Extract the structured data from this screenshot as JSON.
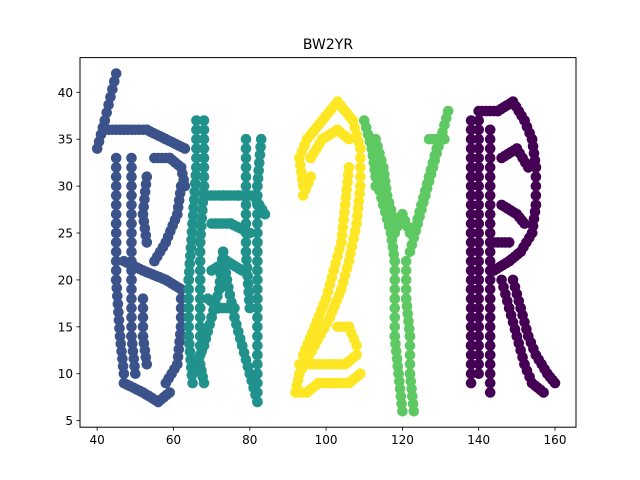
{
  "chart_data": {
    "type": "scatter",
    "title": "BW2YR",
    "xlabel": "",
    "ylabel": "",
    "xlim": [
      35.5,
      165.5
    ],
    "ylim": [
      4.3,
      43.7
    ],
    "xticks": [
      40,
      60,
      80,
      100,
      120,
      140,
      160
    ],
    "yticks": [
      5,
      10,
      15,
      20,
      25,
      30,
      35,
      40
    ],
    "grid": false,
    "legend": "none",
    "series": [
      {
        "color": "#3b528b",
        "letter": "B",
        "strokes": [
          [
            [
              40,
              34
            ],
            [
              42,
              37
            ],
            [
              45,
              42
            ]
          ],
          [
            [
              42,
              36
            ],
            [
              47,
              36
            ],
            [
              53,
              36
            ],
            [
              58,
              35
            ],
            [
              63,
              34
            ]
          ],
          [
            [
              45,
              33
            ],
            [
              45,
              26
            ],
            [
              45,
              20
            ],
            [
              46,
              14
            ],
            [
              47,
              10
            ]
          ],
          [
            [
              49,
              33
            ],
            [
              49,
              26
            ],
            [
              49,
              20
            ],
            [
              49,
              14
            ],
            [
              50,
              10
            ]
          ],
          [
            [
              47,
              9
            ],
            [
              52,
              8
            ],
            [
              56,
              7
            ],
            [
              59,
              8
            ]
          ],
          [
            [
              55,
              33
            ],
            [
              59,
              33
            ],
            [
              62,
              32
            ],
            [
              63,
              30
            ]
          ],
          [
            [
              62,
              30
            ],
            [
              61,
              27
            ],
            [
              58,
              24
            ],
            [
              55,
              22
            ]
          ],
          [
            [
              47,
              22
            ],
            [
              52,
              21
            ],
            [
              58,
              20
            ],
            [
              62,
              19
            ]
          ],
          [
            [
              62,
              19
            ],
            [
              62,
              15
            ],
            [
              61,
              11
            ],
            [
              58,
              9
            ]
          ],
          [
            [
              53,
              31
            ],
            [
              52,
              27
            ],
            [
              53,
              24
            ]
          ],
          [
            [
              52,
              18
            ],
            [
              52,
              14
            ],
            [
              53,
              11
            ]
          ]
        ]
      },
      {
        "color": "#21918c",
        "letter": "W",
        "strokes": [
          [
            [
              66,
              37
            ],
            [
              66,
              32
            ],
            [
              65,
              26
            ],
            [
              64,
              20
            ],
            [
              64,
              14
            ],
            [
              65,
              9
            ]
          ],
          [
            [
              68,
              37
            ],
            [
              68,
              30
            ],
            [
              67,
              24
            ],
            [
              67,
              17
            ],
            [
              67,
              11
            ],
            [
              68,
              9
            ]
          ],
          [
            [
              65,
              10
            ],
            [
              68,
              13
            ],
            [
              70,
              16
            ],
            [
              72,
              19
            ],
            [
              73,
              23
            ]
          ],
          [
            [
              73,
              23
            ],
            [
              74,
              20
            ],
            [
              76,
              16
            ],
            [
              78,
              13
            ],
            [
              80,
              10
            ],
            [
              82,
              7
            ]
          ],
          [
            [
              82,
              7
            ],
            [
              82,
              12
            ],
            [
              82,
              18
            ],
            [
              82,
              24
            ],
            [
              82,
              30
            ],
            [
              83,
              35
            ]
          ],
          [
            [
              79,
              35
            ],
            [
              79,
              29
            ],
            [
              79,
              23
            ],
            [
              80,
              17
            ]
          ],
          [
            [
              69,
              29
            ],
            [
              73,
              29
            ],
            [
              77,
              29
            ],
            [
              81,
              29
            ],
            [
              84,
              27
            ]
          ],
          [
            [
              70,
              26
            ],
            [
              75,
              26
            ],
            [
              80,
              25
            ]
          ],
          [
            [
              70,
              21
            ],
            [
              74,
              22
            ],
            [
              78,
              21
            ]
          ],
          [
            [
              69,
              18
            ],
            [
              72,
              17
            ],
            [
              76,
              17
            ]
          ]
        ]
      },
      {
        "color": "#fde725",
        "letter": "2",
        "strokes": [
          [
            [
              94,
              30
            ],
            [
              93,
              33
            ],
            [
              95,
              35
            ],
            [
              99,
              37
            ],
            [
              103,
              39
            ],
            [
              107,
              37
            ],
            [
              109,
              34
            ]
          ],
          [
            [
              96,
              33
            ],
            [
              99,
              35
            ],
            [
              103,
              36
            ],
            [
              106,
              35
            ]
          ],
          [
            [
              109,
              34
            ],
            [
              109,
              30
            ],
            [
              108,
              26
            ],
            [
              106,
              22
            ],
            [
              104,
              19
            ],
            [
              101,
              16
            ],
            [
              97,
              13
            ],
            [
              93,
              10
            ],
            [
              92,
              8
            ]
          ],
          [
            [
              106,
              32
            ],
            [
              105,
              28
            ],
            [
              104,
              24
            ],
            [
              102,
              21
            ],
            [
              100,
              18
            ],
            [
              97,
              15
            ],
            [
              94,
              12
            ]
          ],
          [
            [
              92,
              8
            ],
            [
              95,
              8
            ],
            [
              98,
              9
            ],
            [
              102,
              9
            ],
            [
              106,
              9
            ],
            [
              109,
              10
            ]
          ],
          [
            [
              93,
              11
            ],
            [
              97,
              11
            ],
            [
              101,
              11
            ],
            [
              105,
              11
            ],
            [
              108,
              12
            ]
          ],
          [
            [
              103,
              15
            ],
            [
              106,
              15
            ],
            [
              108,
              13
            ]
          ],
          [
            [
              94,
              29
            ],
            [
              96,
              31
            ]
          ]
        ]
      },
      {
        "color": "#5ec962",
        "letter": "Y",
        "strokes": [
          [
            [
              110,
              37
            ],
            [
              112,
              34
            ],
            [
              113,
              31
            ],
            [
              115,
              28
            ],
            [
              117,
              25
            ],
            [
              118,
              22
            ]
          ],
          [
            [
              113,
              35
            ],
            [
              115,
              32
            ],
            [
              116,
              29
            ],
            [
              118,
              26
            ]
          ],
          [
            [
              132,
              38
            ],
            [
              130,
              35
            ],
            [
              128,
              32
            ],
            [
              126,
              29
            ],
            [
              124,
              26
            ],
            [
              122,
              23
            ]
          ],
          [
            [
              129,
              34
            ],
            [
              127,
              31
            ],
            [
              125,
              28
            ],
            [
              123,
              25
            ]
          ],
          [
            [
              118,
              22
            ],
            [
              118,
              18
            ],
            [
              118,
              14
            ],
            [
              119,
              10
            ],
            [
              120,
              6
            ]
          ],
          [
            [
              121,
              22
            ],
            [
              121,
              18
            ],
            [
              122,
              14
            ],
            [
              122,
              10
            ],
            [
              123,
              6
            ]
          ],
          [
            [
              118,
              25
            ],
            [
              120,
              27
            ],
            [
              122,
              25
            ]
          ],
          [
            [
              113,
              30
            ],
            [
              115,
              30
            ]
          ],
          [
            [
              127,
              35
            ],
            [
              131,
              35
            ]
          ]
        ]
      },
      {
        "color": "#440154",
        "letter": "R",
        "strokes": [
          [
            [
              140,
              37
            ],
            [
              140,
              32
            ],
            [
              140,
              26
            ],
            [
              140,
              20
            ],
            [
              140,
              15
            ],
            [
              140,
              10
            ]
          ],
          [
            [
              138,
              37
            ],
            [
              138,
              31
            ],
            [
              138,
              25
            ],
            [
              138,
              19
            ],
            [
              138,
              13
            ],
            [
              138,
              9
            ]
          ],
          [
            [
              143,
              36
            ],
            [
              143,
              30
            ],
            [
              143,
              24
            ],
            [
              143,
              18
            ],
            [
              143,
              12
            ],
            [
              143,
              8
            ]
          ],
          [
            [
              140,
              38
            ],
            [
              145,
              38
            ],
            [
              149,
              39
            ],
            [
              152,
              37
            ],
            [
              154,
              35
            ],
            [
              155,
              32
            ]
          ],
          [
            [
              155,
              32
            ],
            [
              155,
              28
            ],
            [
              154,
              25
            ],
            [
              151,
              23
            ],
            [
              148,
              22
            ],
            [
              144,
              21
            ]
          ],
          [
            [
              146,
              33
            ],
            [
              150,
              34
            ],
            [
              153,
              32
            ]
          ],
          [
            [
              146,
              28
            ],
            [
              150,
              27
            ],
            [
              152,
              26
            ]
          ],
          [
            [
              146,
              20
            ],
            [
              148,
              17
            ],
            [
              150,
              14
            ],
            [
              152,
              11
            ],
            [
              154,
              9
            ],
            [
              157,
              8
            ]
          ],
          [
            [
              149,
              20
            ],
            [
              151,
              17
            ],
            [
              153,
              14
            ],
            [
              155,
              12
            ],
            [
              158,
              10
            ],
            [
              160,
              9
            ]
          ],
          [
            [
              144,
              24
            ],
            [
              148,
              24
            ]
          ]
        ]
      }
    ]
  }
}
